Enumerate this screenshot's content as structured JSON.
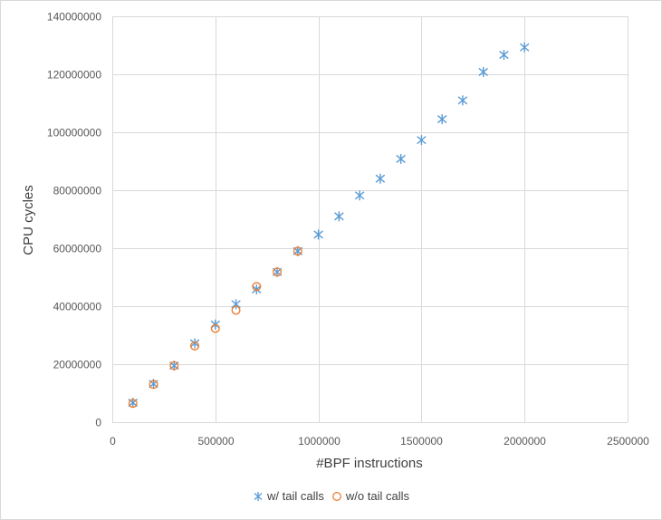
{
  "chart_data": {
    "type": "scatter",
    "title": "",
    "xlabel": "#BPF instructions",
    "ylabel": "CPU cycles",
    "xlim": [
      0,
      2500000
    ],
    "ylim": [
      0,
      140000000
    ],
    "xticks": [
      0,
      500000,
      1000000,
      1500000,
      2000000,
      2500000
    ],
    "yticks": [
      0,
      20000000,
      40000000,
      60000000,
      80000000,
      100000000,
      120000000,
      140000000
    ],
    "xtick_labels": [
      "0",
      "500000",
      "1000000",
      "1500000",
      "2000000",
      "2500000"
    ],
    "ytick_labels": [
      "0",
      "20000000",
      "40000000",
      "60000000",
      "80000000",
      "100000000",
      "120000000",
      "140000000"
    ],
    "grid": true,
    "legend_position": "bottom",
    "series": [
      {
        "name": "w/ tail calls",
        "marker": "asterisk",
        "color": "#5b9bd5",
        "x": [
          100000,
          200000,
          300000,
          400000,
          500000,
          600000,
          700000,
          800000,
          900000,
          1000000,
          1100000,
          1200000,
          1300000,
          1400000,
          1500000,
          1600000,
          1700000,
          1800000,
          1900000,
          2000000
        ],
        "y": [
          6700000,
          13200000,
          19500000,
          27200000,
          33700000,
          40700000,
          45800000,
          51800000,
          59000000,
          64700000,
          71000000,
          78200000,
          84000000,
          90800000,
          97300000,
          104500000,
          111000000,
          120800000,
          126700000,
          129300000
        ]
      },
      {
        "name": "w/o tail calls",
        "marker": "circle",
        "color": "#ed7d31",
        "x": [
          100000,
          200000,
          300000,
          400000,
          500000,
          600000,
          700000,
          800000,
          900000
        ],
        "y": [
          6500000,
          13000000,
          19500000,
          26300000,
          32300000,
          38600000,
          46800000,
          51800000,
          59000000
        ]
      }
    ]
  }
}
